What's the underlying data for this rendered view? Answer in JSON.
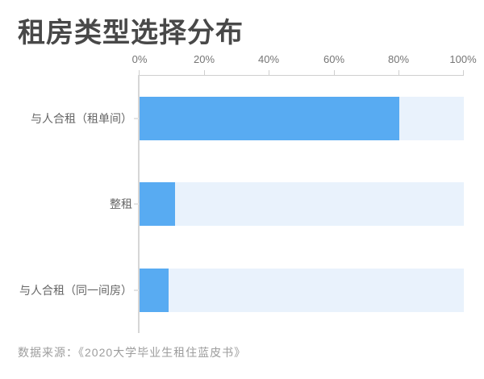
{
  "title": "租房类型选择分布",
  "source": "数据来源：《2020大学毕业生租住蓝皮书》",
  "colors": {
    "bar_fill": "#58abf2",
    "bar_track": "#e9f2fc",
    "axis_line": "#cfcfcf",
    "axis_text": "#757575",
    "category_text": "#666666",
    "title_text": "#484848",
    "source_text": "#9d9d9d"
  },
  "chart_data": {
    "type": "bar",
    "orientation": "horizontal",
    "title": "租房类型选择分布",
    "categories": [
      "与人合租（租单间）",
      "整租",
      "与人合租（同一间房）"
    ],
    "values": [
      80,
      11,
      9
    ],
    "unit": "%",
    "xlabel": "",
    "ylabel": "",
    "xlim": [
      0,
      100
    ],
    "x_ticks": [
      "0%",
      "20%",
      "40%",
      "60%",
      "80%",
      "100%"
    ],
    "grid": false,
    "legend": false,
    "track_full_scale": 100
  }
}
